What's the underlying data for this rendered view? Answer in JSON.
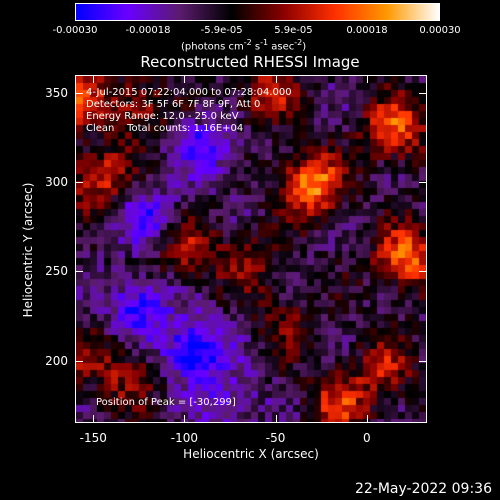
{
  "chart_data": {
    "type": "heatmap",
    "title": "Reconstructed RHESSI Image",
    "xlabel": "Heliocentric X (arcsec)",
    "ylabel": "Heliocentric Y (arcsec)",
    "xlim": [
      -160,
      33
    ],
    "ylim": [
      165,
      360
    ],
    "x_ticks": [
      -150,
      -100,
      -50,
      0
    ],
    "y_ticks": [
      200,
      250,
      300,
      350
    ],
    "annotations": [
      "4-Jul-2015 07:22:04.000 to 07:28:04.000",
      "Detectors: 3F 5F 6F 7F 8F 9F, Att 0",
      "Energy Range: 12.0 - 25.0 keV",
      "Clean    Total counts: 1.16E+04"
    ],
    "peak_label": "Position of Peak = [-30,299]",
    "colorbar": {
      "min": -0.0003,
      "max": 0.0003,
      "tick_labels": [
        "-0.00030",
        "-0.00018",
        "-5.9e-05",
        "5.9e-05",
        "0.00018",
        "0.00030"
      ],
      "tick_values": [
        -0.0003,
        -0.00018,
        -5.9e-05,
        5.9e-05,
        0.00018,
        0.0003
      ],
      "unit_prefix": "(photons cm",
      "unit_exp1": "-2",
      "unit_mid": " s",
      "unit_exp2": "-1",
      "unit_mid2": " asec",
      "unit_exp3": "-2",
      "unit_suffix": ")",
      "colors": [
        "#0000ff",
        "#6a00ff",
        "#5b1b6e",
        "#000000",
        "#8a0000",
        "#ff3000",
        "#ff9900",
        "#ffffff"
      ]
    },
    "peak": [
      -30,
      299
    ],
    "bright_sources": [
      {
        "x": -30,
        "y": 299,
        "value": 0.0003
      },
      {
        "x": 22,
        "y": 258,
        "value": 0.00026
      },
      {
        "x": 16,
        "y": 330,
        "value": 0.00024
      },
      {
        "x": -148,
        "y": 303,
        "value": 0.0002
      },
      {
        "x": -160,
        "y": 348,
        "value": 0.0002
      },
      {
        "x": -98,
        "y": 262,
        "value": 0.00015
      },
      {
        "x": -15,
        "y": 175,
        "value": 0.00018
      },
      {
        "x": 10,
        "y": 195,
        "value": 0.00015
      },
      {
        "x": -55,
        "y": 350,
        "value": 0.00016
      },
      {
        "x": -125,
        "y": 343,
        "value": 0.00015
      },
      {
        "x": -65,
        "y": 255,
        "value": 0.00012
      },
      {
        "x": -45,
        "y": 220,
        "value": 0.0001
      },
      {
        "x": -155,
        "y": 200,
        "value": 0.0001
      },
      {
        "x": -130,
        "y": 190,
        "value": 0.00012
      }
    ],
    "dim_sources": [
      {
        "x": -95,
        "y": 205,
        "value": -0.00025
      },
      {
        "x": -125,
        "y": 230,
        "value": -0.00018
      },
      {
        "x": -88,
        "y": 320,
        "value": -0.00016
      },
      {
        "x": -120,
        "y": 280,
        "value": -0.00014
      },
      {
        "x": -75,
        "y": 175,
        "value": -0.00012
      }
    ]
  },
  "timestamp": "22-May-2022 09:36"
}
